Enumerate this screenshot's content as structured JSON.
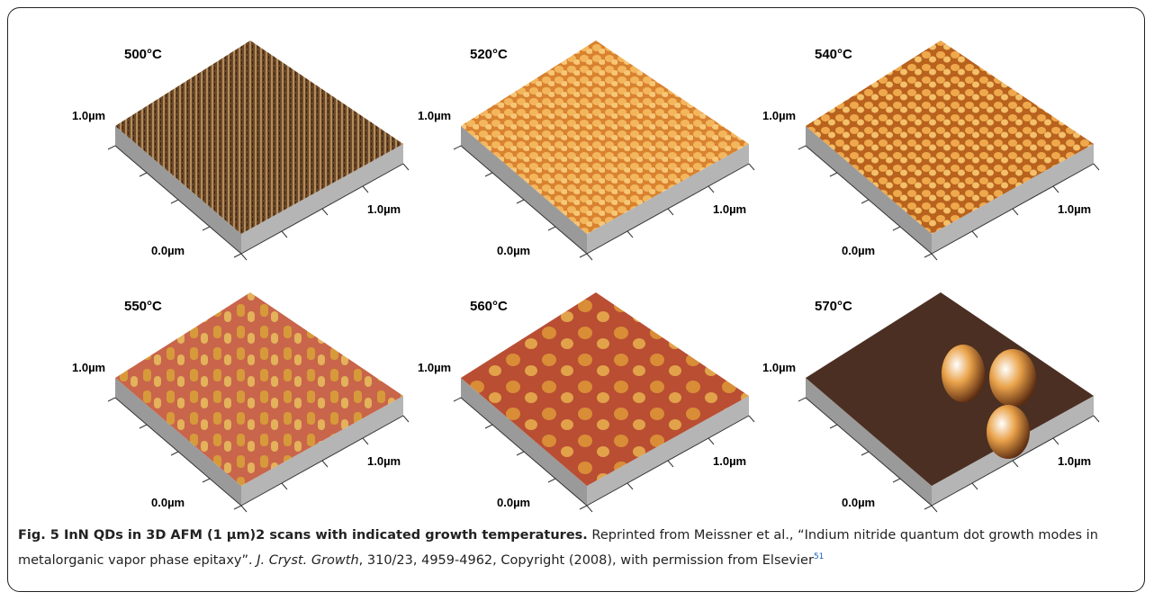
{
  "panels": [
    {
      "temperature": "500°C",
      "y_axis_label": "1.0µm",
      "x_axis_label": "1.0µm",
      "origin_label": "0.0µm"
    },
    {
      "temperature": "520°C",
      "y_axis_label": "1.0µm",
      "x_axis_label": "1.0µm",
      "origin_label": "0.0µm"
    },
    {
      "temperature": "540°C",
      "y_axis_label": "1.0µm",
      "x_axis_label": "1.0µm",
      "origin_label": "0.0µm"
    },
    {
      "temperature": "550°C",
      "y_axis_label": "1.0µm",
      "x_axis_label": "1.0µm",
      "origin_label": "0.0µm"
    },
    {
      "temperature": "560°C",
      "y_axis_label": "1.0µm",
      "x_axis_label": "1.0µm",
      "origin_label": "0.0µm"
    },
    {
      "temperature": "570°C",
      "y_axis_label": "1.0µm",
      "x_axis_label": "1.0µm",
      "origin_label": "0.0µm"
    }
  ],
  "caption": {
    "title": "Fig. 5 InN QDs in 3D AFM (1 µm)2 scans with indicated growth temperatures.",
    "text_before": "Reprinted from Meissner et al., “Indium nitride quantum dot growth modes in metalorganic vapor phase epitaxy”.",
    "journal": "J. Cryst. Growth",
    "text_after": ", 310/23, 4959-4962, Copyright (2008), with permission from Elsevier",
    "reference": "51"
  }
}
